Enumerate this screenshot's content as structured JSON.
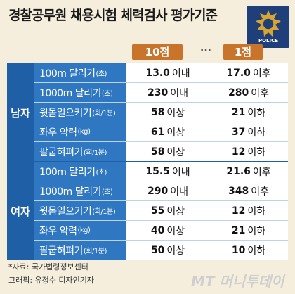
{
  "title": "경찰공무원 채용시험 체력검사 평가기준",
  "emblem": {
    "text": "POLICE"
  },
  "columns": {
    "high": "10점",
    "ellipsis": "···",
    "low": "1점"
  },
  "sections": [
    {
      "label": "남자",
      "rows": [
        {
          "name": "100m 달리기",
          "unit": "(초)",
          "v10": "13.0",
          "v10_suffix": "이내",
          "v1": "17.0",
          "v1_suffix": "이후"
        },
        {
          "name": "1000m 달리기",
          "unit": "(초)",
          "v10": "230",
          "v10_suffix": "이내",
          "v1": "280",
          "v1_suffix": "이후"
        },
        {
          "name": "윗몸일으키기",
          "unit": "(회/1분)",
          "v10": "58",
          "v10_suffix": "이상",
          "v1": "21",
          "v1_suffix": "이하"
        },
        {
          "name": "좌우 악력",
          "unit": "(kg)",
          "v10": "61",
          "v10_suffix": "이상",
          "v1": "37",
          "v1_suffix": "이하"
        },
        {
          "name": "팔굽혀펴기",
          "unit": "(회/1분)",
          "v10": "58",
          "v10_suffix": "이상",
          "v1": "12",
          "v1_suffix": "이하"
        }
      ]
    },
    {
      "label": "여자",
      "rows": [
        {
          "name": "100m 달리기",
          "unit": "(초)",
          "v10": "15.5",
          "v10_suffix": "이내",
          "v1": "21.6",
          "v1_suffix": "이후"
        },
        {
          "name": "1000m 달리기",
          "unit": "(초)",
          "v10": "290",
          "v10_suffix": "이내",
          "v1": "348",
          "v1_suffix": "이후"
        },
        {
          "name": "윗몸일으키기",
          "unit": "(회/1분)",
          "v10": "55",
          "v10_suffix": "이상",
          "v1": "12",
          "v1_suffix": "이하"
        },
        {
          "name": "좌우 악력",
          "unit": "(kg)",
          "v10": "40",
          "v10_suffix": "이상",
          "v1": "21",
          "v1_suffix": "이하"
        },
        {
          "name": "팔굽혀펴기",
          "unit": "(회/1분)",
          "v10": "50",
          "v10_suffix": "이상",
          "v1": "10",
          "v1_suffix": "이하"
        }
      ]
    }
  ],
  "footer": {
    "source": "*자료: 국가법령정보센터",
    "credit": "그래픽: 유정수 디자인기자",
    "brand": "MT 머니투데이"
  },
  "colors": {
    "background": "#f5eedc",
    "section": "#1f5fa6",
    "label": "#2f78c1",
    "header": "#c8742a"
  }
}
